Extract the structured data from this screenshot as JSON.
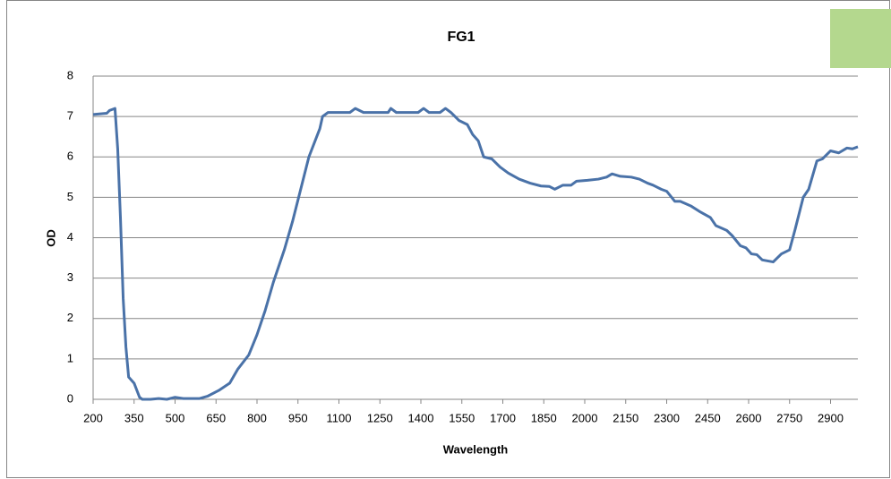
{
  "chart_data": {
    "type": "line",
    "title": "FG1",
    "x_label": "Wavelength",
    "y_label": "OD",
    "xlim": [
      200,
      3000
    ],
    "ylim": [
      0,
      8
    ],
    "xticks": [
      200,
      350,
      500,
      650,
      800,
      950,
      1100,
      1250,
      1400,
      1550,
      1700,
      1850,
      2000,
      2150,
      2300,
      2450,
      2600,
      2750,
      2900
    ],
    "yticks": [
      0,
      1,
      2,
      3,
      4,
      5,
      6,
      7,
      8
    ],
    "grid": true,
    "series": [
      {
        "color": "#4a72a8",
        "x": [
          200,
          250,
          260,
          280,
          290,
          300,
          310,
          320,
          330,
          350,
          370,
          380,
          410,
          440,
          470,
          500,
          530,
          590,
          620,
          660,
          700,
          730,
          770,
          800,
          830,
          860,
          900,
          930,
          960,
          990,
          1030,
          1040,
          1060,
          1110,
          1140,
          1160,
          1190,
          1240,
          1280,
          1290,
          1310,
          1350,
          1390,
          1410,
          1430,
          1470,
          1490,
          1510,
          1540,
          1570,
          1590,
          1610,
          1630,
          1660,
          1690,
          1720,
          1760,
          1800,
          1840,
          1870,
          1890,
          1920,
          1950,
          1970,
          2010,
          2050,
          2080,
          2100,
          2130,
          2170,
          2200,
          2230,
          2250,
          2280,
          2300,
          2330,
          2350,
          2390,
          2420,
          2460,
          2480,
          2520,
          2540,
          2570,
          2590,
          2610,
          2630,
          2650,
          2690,
          2720,
          2750,
          2770,
          2800,
          2820,
          2850,
          2870,
          2900,
          2930,
          2960,
          2980,
          3000
        ],
        "values": [
          7.05,
          7.08,
          7.15,
          7.2,
          6.2,
          4.5,
          2.5,
          1.3,
          0.55,
          0.4,
          0.05,
          0,
          0,
          0.02,
          0,
          0.05,
          0.02,
          0.02,
          0.08,
          0.22,
          0.4,
          0.75,
          1.1,
          1.6,
          2.2,
          2.9,
          3.7,
          4.4,
          5.2,
          6.0,
          6.7,
          7.0,
          7.1,
          7.1,
          7.1,
          7.2,
          7.1,
          7.1,
          7.1,
          7.2,
          7.1,
          7.1,
          7.1,
          7.2,
          7.1,
          7.1,
          7.2,
          7.1,
          6.9,
          6.8,
          6.55,
          6.4,
          6.0,
          5.95,
          5.75,
          5.6,
          5.45,
          5.35,
          5.28,
          5.27,
          5.2,
          5.3,
          5.3,
          5.4,
          5.42,
          5.45,
          5.5,
          5.58,
          5.52,
          5.5,
          5.45,
          5.35,
          5.3,
          5.2,
          5.15,
          4.9,
          4.9,
          4.78,
          4.65,
          4.5,
          4.3,
          4.18,
          4.05,
          3.8,
          3.75,
          3.6,
          3.58,
          3.45,
          3.4,
          3.6,
          3.7,
          4.2,
          5.0,
          5.2,
          5.9,
          5.95,
          6.15,
          6.1,
          6.22,
          6.2,
          6.25
        ]
      }
    ]
  }
}
